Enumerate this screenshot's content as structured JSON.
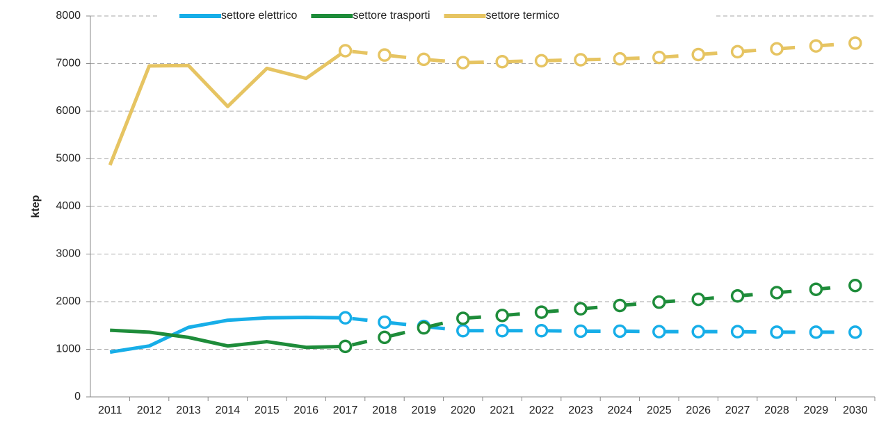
{
  "chart_data": {
    "type": "line",
    "y_label": "ktep",
    "categories": [
      "2011",
      "2012",
      "2013",
      "2014",
      "2015",
      "2016",
      "2017",
      "2018",
      "2019",
      "2020",
      "2021",
      "2022",
      "2023",
      "2024",
      "2025",
      "2026",
      "2027",
      "2028",
      "2029",
      "2030"
    ],
    "projection_start": "2017",
    "series": [
      {
        "name": "settore elettrico",
        "color": "#17aee8",
        "values": [
          940,
          1070,
          1460,
          1610,
          1660,
          1670,
          1660,
          1570,
          1480,
          1390,
          1390,
          1390,
          1380,
          1380,
          1370,
          1370,
          1370,
          1360,
          1360,
          1360
        ]
      },
      {
        "name": "settore trasporti",
        "color": "#1e8c3a",
        "values": [
          1400,
          1360,
          1250,
          1070,
          1160,
          1040,
          1060,
          1250,
          1450,
          1650,
          1710,
          1780,
          1850,
          1920,
          1990,
          2050,
          2120,
          2190,
          2260,
          2340
        ]
      },
      {
        "name": "settore termico",
        "color": "#e6c462",
        "values": [
          4870,
          6950,
          6960,
          6100,
          6900,
          6690,
          7270,
          7180,
          7090,
          7020,
          7040,
          7060,
          7080,
          7100,
          7130,
          7190,
          7250,
          7310,
          7370,
          7430
        ]
      }
    ],
    "ylim": [
      0,
      8000
    ],
    "yticks": [
      0,
      1000,
      2000,
      3000,
      4000,
      5000,
      6000,
      7000,
      8000
    ],
    "grid": true,
    "legend": "top"
  }
}
